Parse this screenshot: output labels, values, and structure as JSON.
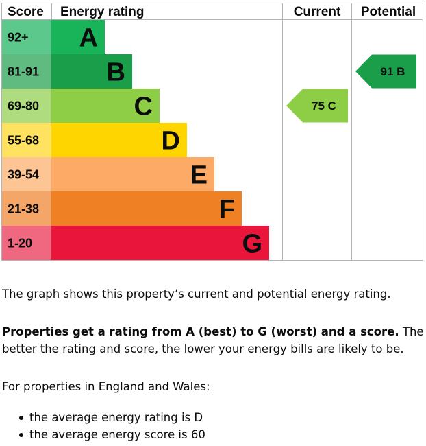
{
  "chart_data": {
    "type": "table",
    "headers": {
      "score": "Score",
      "rating": "Energy rating",
      "current": "Current",
      "potential": "Potential"
    },
    "bands": [
      {
        "score": "92+",
        "letter": "A",
        "color": "#19b459",
        "score_bg": "#5cc88b"
      },
      {
        "score": "81-91",
        "letter": "B",
        "color": "#1a9e4a",
        "score_bg": "#5fbb80"
      },
      {
        "score": "69-80",
        "letter": "C",
        "color": "#8dce46",
        "score_bg": "#afdc7e"
      },
      {
        "score": "55-68",
        "letter": "D",
        "color": "#ffd500",
        "score_bg": "#ffe25f"
      },
      {
        "score": "39-54",
        "letter": "E",
        "color": "#fcaa65",
        "score_bg": "#fdc494"
      },
      {
        "score": "21-38",
        "letter": "F",
        "color": "#ef8023",
        "score_bg": "#f4a669"
      },
      {
        "score": "1-20",
        "letter": "G",
        "color": "#e9153b",
        "score_bg": "#ef6880"
      }
    ],
    "current": {
      "score": 75,
      "letter": "C",
      "label": "75 C",
      "color": "#8dce46"
    },
    "potential": {
      "score": 91,
      "letter": "B",
      "label": "91 B",
      "color": "#1a9e4a"
    }
  },
  "text": {
    "p1": "The graph shows this property’s current and potential energy rating.",
    "p2_bold": "Properties get a rating from A (best) to G (worst) and a score.",
    "p2_rest": " The better the rating and score, the lower your energy bills are likely to be.",
    "p3": "For properties in England and Wales:",
    "facts": [
      "the average energy rating is D",
      "the average energy score is 60"
    ]
  }
}
